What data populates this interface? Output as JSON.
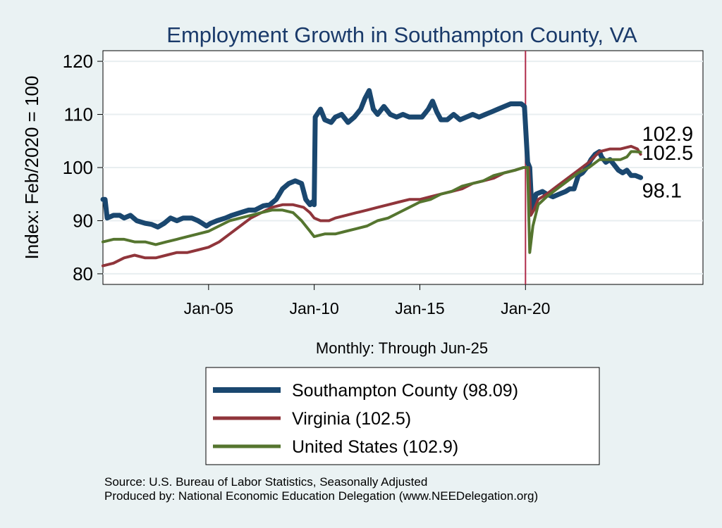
{
  "chart_data": {
    "type": "line",
    "title": "Employment Growth in Southampton  County, VA",
    "ylabel": "Index: Feb/2020 = 100",
    "xlabel": "Monthly: Through Jun-25",
    "ylim": [
      78,
      122
    ],
    "yticks": [
      80,
      90,
      100,
      110,
      120
    ],
    "xlim": [
      2000.0,
      2028.4
    ],
    "xticks": [
      {
        "value": 2005.0,
        "label": "Jan-05"
      },
      {
        "value": 2010.0,
        "label": "Jan-10"
      },
      {
        "value": 2015.0,
        "label": "Jan-15"
      },
      {
        "value": 2020.0,
        "label": "Jan-20"
      }
    ],
    "vline": {
      "x": 2020.0,
      "color": "#b02c4a"
    },
    "grid": "horizontal",
    "legend_position": "bottom",
    "series": [
      {
        "name": "Southampton  County (98.09)",
        "color": "#1a476f",
        "width": 7,
        "points": [
          [
            2000.0,
            94
          ],
          [
            2000.1,
            94
          ],
          [
            2000.2,
            90.5
          ],
          [
            2000.5,
            91
          ],
          [
            2000.8,
            91
          ],
          [
            2001.0,
            90.5
          ],
          [
            2001.3,
            91
          ],
          [
            2001.6,
            90
          ],
          [
            2002.0,
            89.5
          ],
          [
            2002.3,
            89.3
          ],
          [
            2002.6,
            88.8
          ],
          [
            2002.9,
            89.5
          ],
          [
            2003.2,
            90.5
          ],
          [
            2003.5,
            90
          ],
          [
            2003.8,
            90.5
          ],
          [
            2004.2,
            90.5
          ],
          [
            2004.5,
            90
          ],
          [
            2004.7,
            89.5
          ],
          [
            2004.9,
            89
          ],
          [
            2005.1,
            89.5
          ],
          [
            2005.4,
            90
          ],
          [
            2005.8,
            90.5
          ],
          [
            2006.1,
            91
          ],
          [
            2006.5,
            91.5
          ],
          [
            2006.9,
            92
          ],
          [
            2007.2,
            92
          ],
          [
            2007.6,
            92.8
          ],
          [
            2007.9,
            93
          ],
          [
            2008.2,
            94
          ],
          [
            2008.5,
            96
          ],
          [
            2008.8,
            97
          ],
          [
            2009.1,
            97.5
          ],
          [
            2009.4,
            97
          ],
          [
            2009.6,
            94
          ],
          [
            2009.8,
            93
          ],
          [
            2009.9,
            93.5
          ],
          [
            2010.0,
            93
          ],
          [
            2010.05,
            109.5
          ],
          [
            2010.3,
            111
          ],
          [
            2010.5,
            109
          ],
          [
            2010.8,
            108.5
          ],
          [
            2011.0,
            109.5
          ],
          [
            2011.3,
            110
          ],
          [
            2011.6,
            108.5
          ],
          [
            2011.9,
            109.5
          ],
          [
            2012.2,
            111
          ],
          [
            2012.4,
            113
          ],
          [
            2012.6,
            114.5
          ],
          [
            2012.8,
            111
          ],
          [
            2013.0,
            110
          ],
          [
            2013.3,
            111.5
          ],
          [
            2013.6,
            110
          ],
          [
            2013.9,
            109.5
          ],
          [
            2014.2,
            110
          ],
          [
            2014.5,
            109.5
          ],
          [
            2014.8,
            109.5
          ],
          [
            2015.1,
            109.5
          ],
          [
            2015.4,
            111
          ],
          [
            2015.6,
            112.5
          ],
          [
            2015.8,
            110.5
          ],
          [
            2016.0,
            109
          ],
          [
            2016.3,
            109
          ],
          [
            2016.6,
            110
          ],
          [
            2016.9,
            109
          ],
          [
            2017.2,
            109.5
          ],
          [
            2017.5,
            110
          ],
          [
            2017.8,
            109.5
          ],
          [
            2018.1,
            110
          ],
          [
            2018.4,
            110.5
          ],
          [
            2018.7,
            111
          ],
          [
            2019.0,
            111.5
          ],
          [
            2019.3,
            112
          ],
          [
            2019.6,
            112
          ],
          [
            2019.8,
            112
          ],
          [
            2019.95,
            111.5
          ],
          [
            2020.1,
            101
          ],
          [
            2020.2,
            100
          ],
          [
            2020.3,
            92
          ],
          [
            2020.5,
            95
          ],
          [
            2020.8,
            95.5
          ],
          [
            2021.0,
            95
          ],
          [
            2021.3,
            94.5
          ],
          [
            2021.6,
            95
          ],
          [
            2021.9,
            95.5
          ],
          [
            2022.1,
            96
          ],
          [
            2022.3,
            96
          ],
          [
            2022.5,
            98.5
          ],
          [
            2022.7,
            99
          ],
          [
            2022.9,
            100
          ],
          [
            2023.1,
            101.5
          ],
          [
            2023.3,
            102.5
          ],
          [
            2023.5,
            103
          ],
          [
            2023.6,
            102
          ],
          [
            2023.8,
            101
          ],
          [
            2024.0,
            101.5
          ],
          [
            2024.2,
            100.5
          ],
          [
            2024.4,
            99.5
          ],
          [
            2024.6,
            99
          ],
          [
            2024.8,
            99.5
          ],
          [
            2025.0,
            98.5
          ],
          [
            2025.2,
            98.5
          ],
          [
            2025.45,
            98.1
          ]
        ]
      },
      {
        "name": "Virginia (102.5)",
        "color": "#90353b",
        "width": 4,
        "points": [
          [
            2000.0,
            81.5
          ],
          [
            2000.5,
            82
          ],
          [
            2001.0,
            83
          ],
          [
            2001.5,
            83.5
          ],
          [
            2002.0,
            83
          ],
          [
            2002.5,
            83
          ],
          [
            2003.0,
            83.5
          ],
          [
            2003.5,
            84
          ],
          [
            2004.0,
            84
          ],
          [
            2004.5,
            84.5
          ],
          [
            2005.0,
            85
          ],
          [
            2005.5,
            86
          ],
          [
            2006.0,
            87.5
          ],
          [
            2006.5,
            89
          ],
          [
            2007.0,
            90.5
          ],
          [
            2007.5,
            91.5
          ],
          [
            2008.0,
            92.5
          ],
          [
            2008.5,
            93
          ],
          [
            2009.0,
            93
          ],
          [
            2009.5,
            92.5
          ],
          [
            2009.8,
            91.5
          ],
          [
            2010.0,
            90.5
          ],
          [
            2010.3,
            90
          ],
          [
            2010.7,
            90
          ],
          [
            2011.0,
            90.5
          ],
          [
            2011.5,
            91
          ],
          [
            2012.0,
            91.5
          ],
          [
            2012.5,
            92
          ],
          [
            2013.0,
            92.5
          ],
          [
            2013.5,
            93
          ],
          [
            2014.0,
            93.5
          ],
          [
            2014.5,
            94
          ],
          [
            2015.0,
            94
          ],
          [
            2015.5,
            94.5
          ],
          [
            2016.0,
            95
          ],
          [
            2016.5,
            95.5
          ],
          [
            2017.0,
            96
          ],
          [
            2017.5,
            97
          ],
          [
            2018.0,
            97.5
          ],
          [
            2018.5,
            98
          ],
          [
            2019.0,
            99
          ],
          [
            2019.5,
            99.5
          ],
          [
            2019.9,
            100
          ],
          [
            2020.15,
            100
          ],
          [
            2020.25,
            91
          ],
          [
            2020.4,
            92
          ],
          [
            2020.6,
            94
          ],
          [
            2021.0,
            95
          ],
          [
            2021.5,
            96.5
          ],
          [
            2022.0,
            98
          ],
          [
            2022.5,
            99.5
          ],
          [
            2023.0,
            101
          ],
          [
            2023.5,
            103
          ],
          [
            2024.0,
            103.5
          ],
          [
            2024.5,
            103.5
          ],
          [
            2025.0,
            104
          ],
          [
            2025.3,
            103.5
          ],
          [
            2025.45,
            102.5
          ]
        ]
      },
      {
        "name": "United States (102.9)",
        "color": "#55752f",
        "width": 4,
        "points": [
          [
            2000.0,
            86
          ],
          [
            2000.5,
            86.5
          ],
          [
            2001.0,
            86.5
          ],
          [
            2001.5,
            86
          ],
          [
            2002.0,
            86
          ],
          [
            2002.5,
            85.5
          ],
          [
            2003.0,
            86
          ],
          [
            2003.5,
            86.5
          ],
          [
            2004.0,
            87
          ],
          [
            2004.5,
            87.5
          ],
          [
            2005.0,
            88
          ],
          [
            2005.5,
            89
          ],
          [
            2006.0,
            90
          ],
          [
            2006.5,
            90.5
          ],
          [
            2007.0,
            91
          ],
          [
            2007.5,
            91.5
          ],
          [
            2008.0,
            92
          ],
          [
            2008.5,
            92
          ],
          [
            2009.0,
            91.5
          ],
          [
            2009.4,
            90
          ],
          [
            2009.8,
            88
          ],
          [
            2010.0,
            87
          ],
          [
            2010.5,
            87.5
          ],
          [
            2011.0,
            87.5
          ],
          [
            2011.5,
            88
          ],
          [
            2012.0,
            88.5
          ],
          [
            2012.5,
            89
          ],
          [
            2013.0,
            90
          ],
          [
            2013.5,
            90.5
          ],
          [
            2014.0,
            91.5
          ],
          [
            2014.5,
            92.5
          ],
          [
            2015.0,
            93.5
          ],
          [
            2015.5,
            94
          ],
          [
            2016.0,
            95
          ],
          [
            2016.5,
            95.5
          ],
          [
            2017.0,
            96.5
          ],
          [
            2017.5,
            97
          ],
          [
            2018.0,
            97.5
          ],
          [
            2018.5,
            98.5
          ],
          [
            2019.0,
            99
          ],
          [
            2019.5,
            99.5
          ],
          [
            2019.9,
            100
          ],
          [
            2020.1,
            100
          ],
          [
            2020.2,
            84
          ],
          [
            2020.35,
            89
          ],
          [
            2020.6,
            93
          ],
          [
            2021.0,
            94.5
          ],
          [
            2021.5,
            96
          ],
          [
            2022.0,
            97.5
          ],
          [
            2022.5,
            99
          ],
          [
            2023.0,
            100
          ],
          [
            2023.5,
            101.5
          ],
          [
            2024.0,
            101.5
          ],
          [
            2024.5,
            101.5
          ],
          [
            2024.8,
            102
          ],
          [
            2025.0,
            103
          ],
          [
            2025.2,
            103
          ],
          [
            2025.45,
            102.9
          ]
        ]
      }
    ],
    "end_labels": [
      {
        "text": "102.9",
        "series": 2
      },
      {
        "text": "102.5",
        "series": 1
      },
      {
        "text": "98.1",
        "series": 0
      }
    ],
    "footer": [
      "Source: U.S. Bureau of Labor Statistics, Seasonally Adjusted",
      "Produced by: National Economic Education Delegation (www.NEEDelegation.org)"
    ]
  }
}
